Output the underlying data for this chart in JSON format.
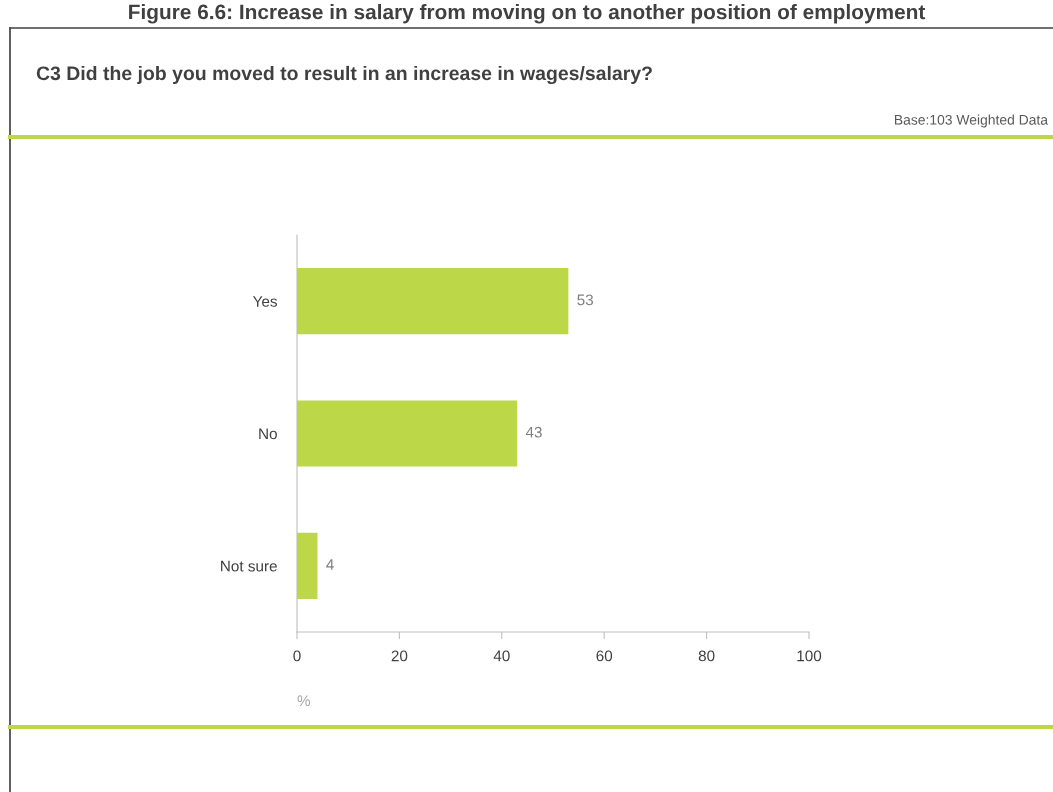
{
  "chart_data": {
    "type": "bar",
    "orientation": "horizontal",
    "title": "Figure 6.6: Increase in salary from moving on to another position of employment",
    "subtitle": "C3 Did the job you moved to result in an increase in wages/salary?",
    "annotations": [
      "Base:103 Weighted Data"
    ],
    "categories": [
      "Yes",
      "No",
      "Not sure"
    ],
    "values": [
      53,
      43,
      4
    ],
    "color": "#bcd747",
    "data_labels": true,
    "xlim": [
      0,
      100
    ],
    "xticks": [
      0,
      20,
      40,
      60,
      80,
      100
    ],
    "xlabel": "%",
    "grid": false,
    "legend": false
  }
}
